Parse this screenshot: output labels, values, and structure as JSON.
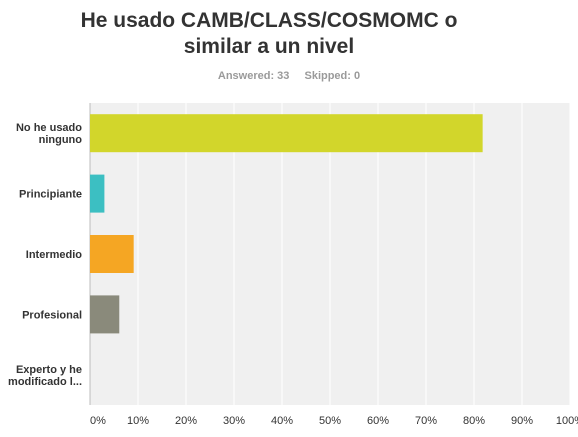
{
  "header": {
    "title_line1": "He usado CAMB/CLASS/COSMOMC o",
    "title_line2": "similar a un nivel",
    "answered_label": "Answered: 33",
    "skipped_label": "Skipped: 0"
  },
  "chart_data": {
    "type": "bar",
    "orientation": "horizontal",
    "title": "He usado CAMB/CLASS/COSMOMC o similar a un nivel",
    "categories": [
      [
        "No he usado",
        "ninguno"
      ],
      [
        "Principiante"
      ],
      [
        "Intermedio"
      ],
      [
        "Profesional"
      ],
      [
        "Experto y he",
        "modificado l..."
      ]
    ],
    "values": [
      81.8,
      3.0,
      9.1,
      6.1,
      0
    ],
    "colors": [
      "#d2d62b",
      "#3cbfc2",
      "#f5a623",
      "#8a8a7b",
      "#e04d3f"
    ],
    "xlim": [
      0,
      100
    ],
    "xticks": [
      "0%",
      "10%",
      "20%",
      "30%",
      "40%",
      "50%",
      "60%",
      "70%",
      "80%",
      "90%",
      "100%"
    ],
    "grid": true,
    "background": "#f0f0f0",
    "grid_color": "#ffffff"
  }
}
